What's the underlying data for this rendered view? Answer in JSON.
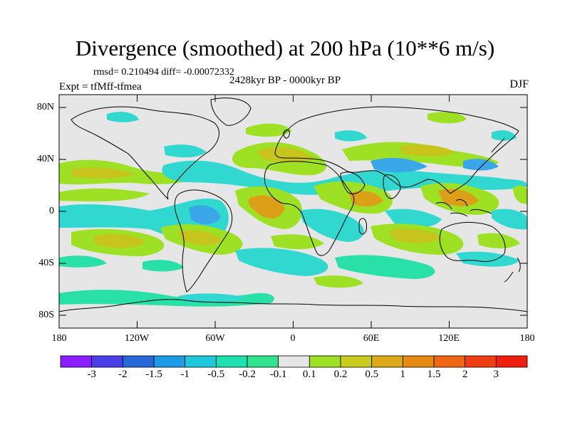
{
  "title": "Divergence (smoothed) at 200 hPa (10**6 m/s)",
  "stats": "rmsd= 0.210494 diff= -0.00072332",
  "time_range": "2428kyr BP - 0000kyr BP",
  "experiment": "Expt = tfMff-tfmea",
  "season": "DJF",
  "lat_ticks": [
    "80N",
    "40N",
    "0",
    "40S",
    "80S"
  ],
  "lon_ticks": [
    "180",
    "120W",
    "60W",
    "0",
    "60E",
    "120E",
    "180"
  ],
  "colorbar": {
    "labels": [
      "-3",
      "-2",
      "-1.5",
      "-1",
      "-0.5",
      "-0.2",
      "-0.1",
      "0.1",
      "0.2",
      "0.5",
      "1",
      "1.5",
      "2",
      "3"
    ],
    "colors": [
      "#8a1eff",
      "#4a3ee8",
      "#2868d8",
      "#1e9ae6",
      "#1ec8dc",
      "#20e0b0",
      "#30e490",
      "#e6e6e6",
      "#9ee024",
      "#c8cc1c",
      "#dcaa18",
      "#e68a14",
      "#ee6614",
      "#f03c12",
      "#f01e0e"
    ]
  },
  "chart_data": {
    "type": "heatmap",
    "title": "Divergence (smoothed) at 200 hPa (10**6 m/s)",
    "projection": "cylindrical equidistant",
    "x_range": [
      -180,
      180
    ],
    "y_range": [
      -90,
      90
    ],
    "field_colors": {
      "neutral": "#e6e6e6",
      "cyan": "#30d8d0",
      "teal": "#28e0a8",
      "blue": "#3aa8e8",
      "green": "#9ee024",
      "olive": "#c8c41e",
      "orange": "#dca018"
    }
  }
}
